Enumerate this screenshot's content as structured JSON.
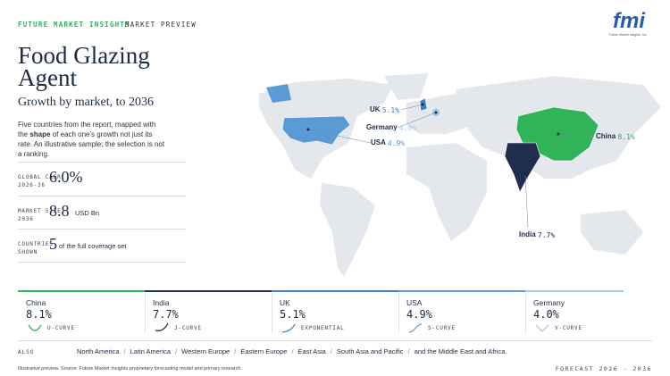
{
  "header": {
    "brand": "FUTURE MARKET INSIGHTS",
    "separator": "·",
    "section": "MARKET PREVIEW",
    "logo": "fmi",
    "logo_caption": "Future Market Insights, Inc."
  },
  "title": "Food Glazing Agent",
  "subtitle": "Growth by market, to 2036",
  "description": {
    "before": "Five countries from the report, mapped with the ",
    "bold": "shape",
    "after": " of each one's growth not just its rate. An illustrative sample; the selection is not a ranking."
  },
  "stats": [
    {
      "label": [
        "GLOBAL CAGR",
        "2026-36"
      ],
      "value": "6.0%"
    },
    {
      "label": [
        "MARKET SIZE",
        "2036"
      ],
      "value": "8.8",
      "unit": "USD Bn"
    },
    {
      "label": [
        "COUNTRIES",
        "SHOWN"
      ],
      "value": "5",
      "unit": "of the full coverage set"
    }
  ],
  "map_labels": [
    {
      "country": "UK",
      "rate": "5.1%"
    },
    {
      "country": "Germany",
      "rate": "4.0%"
    },
    {
      "country": "USA",
      "rate": "4.9%"
    },
    {
      "country": "China",
      "rate": "8.1%"
    },
    {
      "country": "India",
      "rate": "7.7%"
    }
  ],
  "cards": [
    {
      "country": "China",
      "rate": "8.1%",
      "curve": "U-CURVE",
      "color": "#2fb45a"
    },
    {
      "country": "India",
      "rate": "7.7%",
      "curve": "J-CURVE",
      "color": "#1f2d4f"
    },
    {
      "country": "UK",
      "rate": "5.1%",
      "curve": "EXPONENTIAL",
      "color": "#3f7fc4"
    },
    {
      "country": "USA",
      "rate": "4.9%",
      "curve": "S-CURVE",
      "color": "#5b9bd5"
    },
    {
      "country": "Germany",
      "rate": "4.0%",
      "curve": "V-CURVE",
      "color": "#a9c9ea"
    }
  ],
  "also": {
    "label": "ALSO",
    "separator": "/",
    "regions": [
      "North America",
      "Latin America",
      "Western Europe",
      "Eastern Europe",
      "East Asia",
      "South Asia and Pacific",
      "and the Middle East and Africa."
    ]
  },
  "footer": {
    "source": "Illustrative preview. Source: Future Market Insights proprietary forecasting model and primary research.",
    "forecast": "FORECAST 2026 - 2036"
  }
}
